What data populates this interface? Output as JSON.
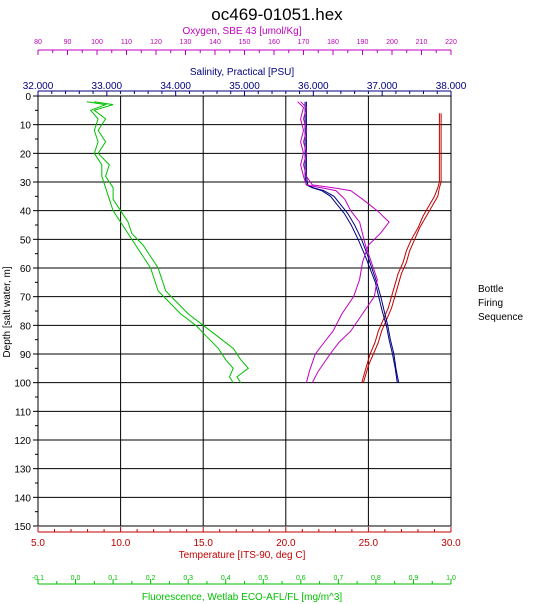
{
  "chart_data": {
    "type": "line",
    "title": "oc469-01051.hex",
    "side_label_lines": [
      "Bottle",
      "Firing",
      "Sequence"
    ],
    "y_axis": {
      "label": "Depth [salt water, m]",
      "range": [
        0,
        150
      ],
      "ticks": [
        0,
        10,
        20,
        30,
        40,
        50,
        60,
        70,
        80,
        90,
        100,
        110,
        120,
        130,
        140,
        150
      ],
      "inverted": true,
      "color": "#000000"
    },
    "x_axes": [
      {
        "id": "oxygen",
        "position": "top-outer",
        "label": "Oxygen, SBE 43 [umol/Kg]",
        "color": "#c000c0",
        "range": [
          80,
          220
        ],
        "tick_labels": [
          "80",
          "90",
          "100",
          "110",
          "120",
          "130",
          "140",
          "150",
          "160",
          "170",
          "180",
          "190",
          "200",
          "210",
          "220"
        ]
      },
      {
        "id": "salinity",
        "position": "top-inner",
        "label": "Salinity, Practical [PSU]",
        "color": "#000080",
        "range": [
          32,
          38
        ],
        "tick_labels": [
          "32.000",
          "33.000",
          "34.000",
          "35.000",
          "36.000",
          "37.000",
          "38.000"
        ]
      },
      {
        "id": "temperature",
        "position": "bottom-inner",
        "label": "Temperature [ITS-90, deg C]",
        "color": "#c00000",
        "range": [
          5,
          30
        ],
        "tick_labels": [
          "5.0",
          "10.0",
          "15.0",
          "20.0",
          "25.0",
          "30.0"
        ]
      },
      {
        "id": "fluorescence",
        "position": "bottom-outer",
        "label": "Fluorescence, Wetlab ECO-AFL/FL [mg/m^3]",
        "color": "#00c000",
        "range": [
          -0.1,
          1.0
        ],
        "tick_labels": [
          "-0.1",
          "0.0",
          "0.1",
          "0.2",
          "0.3",
          "0.4",
          "0.5",
          "0.6",
          "0.7",
          "0.8",
          "0.9",
          "1.0"
        ]
      }
    ],
    "grid": true,
    "series": [
      {
        "axis": "temperature",
        "color": "#c00000",
        "points": [
          [
            29.4,
            6
          ],
          [
            29.4,
            10
          ],
          [
            29.4,
            20
          ],
          [
            29.4,
            30
          ],
          [
            29.3,
            32
          ],
          [
            29.2,
            35
          ],
          [
            28.9,
            38
          ],
          [
            28.5,
            42
          ],
          [
            28.1,
            46
          ],
          [
            27.8,
            50
          ],
          [
            27.5,
            54
          ],
          [
            27.3,
            58
          ],
          [
            27.0,
            62
          ],
          [
            26.8,
            66
          ],
          [
            26.6,
            70
          ],
          [
            26.4,
            74
          ],
          [
            26.1,
            78
          ],
          [
            25.8,
            82
          ],
          [
            25.6,
            86
          ],
          [
            25.3,
            90
          ],
          [
            25.0,
            94
          ],
          [
            24.8,
            98
          ],
          [
            24.7,
            100
          ]
        ]
      },
      {
        "axis": "temperature",
        "color": "#c00000",
        "points": [
          [
            29.3,
            6
          ],
          [
            29.3,
            10
          ],
          [
            29.3,
            20
          ],
          [
            29.3,
            30
          ],
          [
            29.2,
            32
          ],
          [
            29.0,
            35
          ],
          [
            28.7,
            38
          ],
          [
            28.3,
            42
          ],
          [
            28.0,
            46
          ],
          [
            27.6,
            50
          ],
          [
            27.3,
            54
          ],
          [
            27.1,
            58
          ],
          [
            26.8,
            62
          ],
          [
            26.6,
            66
          ],
          [
            26.4,
            70
          ],
          [
            26.2,
            74
          ],
          [
            25.9,
            78
          ],
          [
            25.6,
            82
          ],
          [
            25.4,
            86
          ],
          [
            25.1,
            90
          ],
          [
            24.9,
            94
          ],
          [
            24.7,
            98
          ],
          [
            24.6,
            100
          ]
        ]
      },
      {
        "axis": "salinity",
        "color": "#000080",
        "points": [
          [
            35.9,
            2
          ],
          [
            35.9,
            8
          ],
          [
            35.9,
            15
          ],
          [
            35.9,
            22
          ],
          [
            35.9,
            28
          ],
          [
            35.92,
            31
          ],
          [
            36.0,
            32
          ],
          [
            36.15,
            33
          ],
          [
            36.3,
            35
          ],
          [
            36.4,
            38
          ],
          [
            36.5,
            41
          ],
          [
            36.6,
            45
          ],
          [
            36.7,
            50
          ],
          [
            36.78,
            55
          ],
          [
            36.85,
            60
          ],
          [
            36.92,
            65
          ],
          [
            36.98,
            70
          ],
          [
            37.03,
            75
          ],
          [
            37.08,
            80
          ],
          [
            37.12,
            85
          ],
          [
            37.17,
            90
          ],
          [
            37.2,
            95
          ],
          [
            37.24,
            100
          ]
        ]
      },
      {
        "axis": "salinity",
        "color": "#000080",
        "points": [
          [
            35.88,
            2
          ],
          [
            35.88,
            8
          ],
          [
            35.88,
            15
          ],
          [
            35.88,
            22
          ],
          [
            35.88,
            28
          ],
          [
            35.9,
            31
          ],
          [
            35.98,
            32
          ],
          [
            36.12,
            33
          ],
          [
            36.25,
            35
          ],
          [
            36.35,
            38
          ],
          [
            36.45,
            41
          ],
          [
            36.55,
            45
          ],
          [
            36.65,
            50
          ],
          [
            36.74,
            55
          ],
          [
            36.82,
            60
          ],
          [
            36.9,
            65
          ],
          [
            36.95,
            70
          ],
          [
            37.0,
            75
          ],
          [
            37.06,
            80
          ],
          [
            37.1,
            85
          ],
          [
            37.15,
            90
          ],
          [
            37.19,
            95
          ],
          [
            37.22,
            100
          ]
        ]
      },
      {
        "axis": "oxygen",
        "color": "#c000c0",
        "points": [
          [
            169,
            2
          ],
          [
            171,
            4
          ],
          [
            170,
            8
          ],
          [
            171,
            12
          ],
          [
            170,
            16
          ],
          [
            171,
            20
          ],
          [
            170,
            24
          ],
          [
            171,
            28
          ],
          [
            173,
            31
          ],
          [
            180,
            32
          ],
          [
            186,
            33
          ],
          [
            190,
            36
          ],
          [
            195,
            40
          ],
          [
            199,
            44
          ],
          [
            196,
            48
          ],
          [
            192,
            52
          ],
          [
            190,
            58
          ],
          [
            189,
            64
          ],
          [
            187,
            70
          ],
          [
            183,
            76
          ],
          [
            180,
            82
          ],
          [
            177,
            86
          ],
          [
            174,
            90
          ],
          [
            172,
            96
          ],
          [
            171,
            100
          ]
        ]
      },
      {
        "axis": "oxygen",
        "color": "#c000c0",
        "points": [
          [
            168,
            2
          ],
          [
            170,
            4
          ],
          [
            169,
            8
          ],
          [
            170,
            12
          ],
          [
            169,
            16
          ],
          [
            170,
            20
          ],
          [
            169,
            24
          ],
          [
            170,
            28
          ],
          [
            171,
            31
          ],
          [
            176,
            32
          ],
          [
            181,
            33
          ],
          [
            184,
            36
          ],
          [
            186,
            40
          ],
          [
            189,
            44
          ],
          [
            190,
            48
          ],
          [
            191,
            52
          ],
          [
            193,
            58
          ],
          [
            195,
            64
          ],
          [
            194,
            70
          ],
          [
            190,
            76
          ],
          [
            186,
            82
          ],
          [
            182,
            86
          ],
          [
            179,
            90
          ],
          [
            175,
            96
          ],
          [
            173,
            100
          ]
        ]
      },
      {
        "axis": "fluorescence",
        "color": "#00c000",
        "points": [
          [
            0.05,
            2
          ],
          [
            0.1,
            3
          ],
          [
            0.05,
            5
          ],
          [
            0.08,
            8
          ],
          [
            0.06,
            12
          ],
          [
            0.08,
            16
          ],
          [
            0.06,
            20
          ],
          [
            0.09,
            24
          ],
          [
            0.08,
            28
          ],
          [
            0.1,
            32
          ],
          [
            0.1,
            36
          ],
          [
            0.12,
            40
          ],
          [
            0.14,
            44
          ],
          [
            0.15,
            48
          ],
          [
            0.18,
            52
          ],
          [
            0.2,
            56
          ],
          [
            0.22,
            60
          ],
          [
            0.23,
            64
          ],
          [
            0.24,
            68
          ],
          [
            0.27,
            72
          ],
          [
            0.3,
            76
          ],
          [
            0.34,
            80
          ],
          [
            0.38,
            84
          ],
          [
            0.42,
            88
          ],
          [
            0.44,
            92
          ],
          [
            0.46,
            95
          ],
          [
            0.43,
            98
          ],
          [
            0.44,
            100
          ]
        ]
      },
      {
        "axis": "fluorescence",
        "color": "#00c000",
        "points": [
          [
            0.03,
            2
          ],
          [
            0.08,
            3
          ],
          [
            0.04,
            5
          ],
          [
            0.06,
            8
          ],
          [
            0.05,
            12
          ],
          [
            0.06,
            16
          ],
          [
            0.05,
            20
          ],
          [
            0.07,
            24
          ],
          [
            0.07,
            28
          ],
          [
            0.08,
            32
          ],
          [
            0.09,
            36
          ],
          [
            0.1,
            40
          ],
          [
            0.12,
            44
          ],
          [
            0.14,
            48
          ],
          [
            0.16,
            52
          ],
          [
            0.18,
            56
          ],
          [
            0.2,
            60
          ],
          [
            0.21,
            64
          ],
          [
            0.22,
            68
          ],
          [
            0.25,
            72
          ],
          [
            0.28,
            76
          ],
          [
            0.32,
            80
          ],
          [
            0.35,
            84
          ],
          [
            0.38,
            88
          ],
          [
            0.4,
            92
          ],
          [
            0.42,
            95
          ],
          [
            0.41,
            98
          ],
          [
            0.42,
            100
          ]
        ]
      }
    ]
  }
}
